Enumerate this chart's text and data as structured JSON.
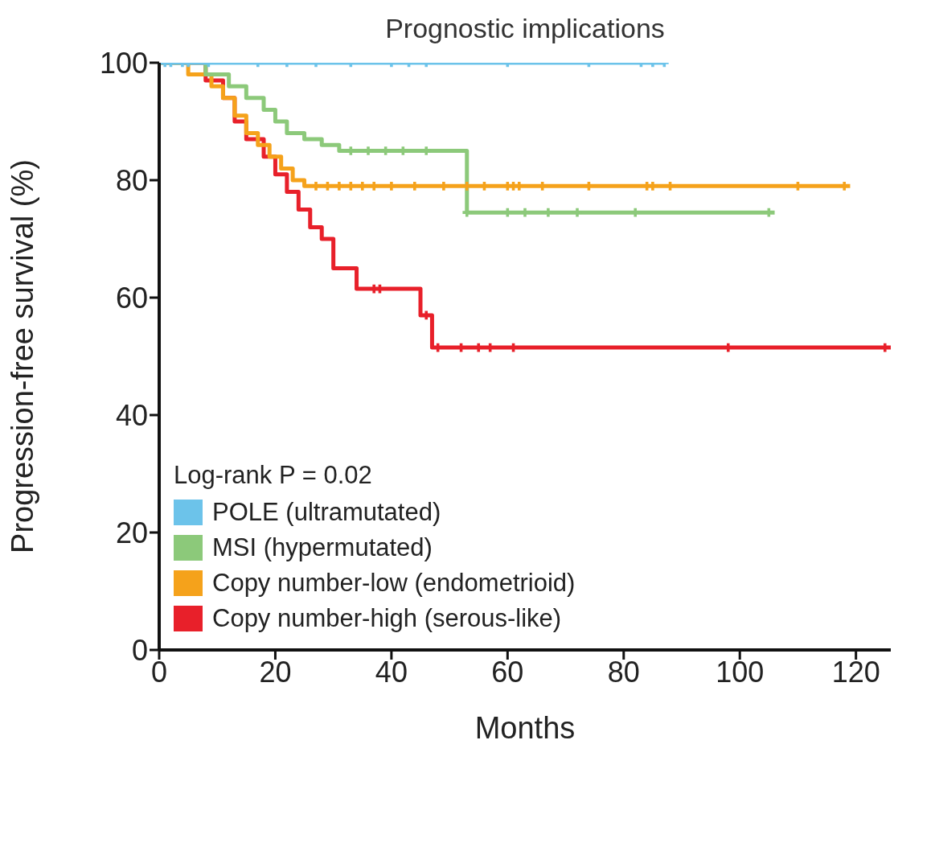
{
  "chart_data": {
    "type": "step",
    "title": "Prognostic implications",
    "xlabel": "Months",
    "ylabel": "Progression-free survival (%)",
    "xlim": [
      0,
      126
    ],
    "xticks": [
      0,
      20,
      40,
      60,
      80,
      100,
      120
    ],
    "ylim": [
      0,
      100
    ],
    "yticks": [
      0,
      20,
      40,
      60,
      80,
      100
    ],
    "grid": false,
    "legend": "bottom left",
    "line_style": "solid",
    "annotations": [
      "Log-rank P = 0.02"
    ],
    "series": [
      {
        "name": "POLE (ultramutated)",
        "color": "#6cc3ea",
        "marker": "none",
        "x": [
          0,
          87
        ],
        "values": [
          100,
          100
        ]
      },
      {
        "type": "scatter",
        "color": "#6cc3ea",
        "marker": "cross",
        "x": [
          1,
          2,
          4,
          5,
          8.5,
          17,
          22,
          27,
          33,
          40,
          43,
          46,
          60,
          74,
          83,
          85,
          87
        ],
        "values": [
          100,
          100,
          100,
          100,
          100,
          100,
          100,
          100,
          100,
          100,
          100,
          100,
          100,
          100,
          100,
          100,
          100
        ]
      },
      {
        "name": "MSI (hypermutated)",
        "color": "#8cc97a",
        "marker": "none",
        "x": [
          0,
          8,
          12,
          15,
          18,
          20,
          22,
          25,
          28,
          31,
          53,
          106
        ],
        "values": [
          100,
          98,
          96,
          94,
          92,
          90,
          88,
          87,
          86,
          85,
          74.5,
          74.5
        ]
      },
      {
        "type": "scatter",
        "color": "#8cc97a",
        "marker": "cross",
        "x": [
          33,
          36,
          39,
          42,
          46,
          53,
          60,
          63,
          67,
          72,
          82,
          105
        ],
        "values": [
          85,
          85,
          85,
          85,
          85,
          74.5,
          74.5,
          74.5,
          74.5,
          74.5,
          74.5,
          74.5
        ]
      },
      {
        "name": "Copy number-low (endometrioid)",
        "color": "#f5a21b",
        "marker": "none",
        "x": [
          0,
          5,
          9,
          11,
          13,
          15,
          17,
          19,
          21,
          23,
          25,
          119
        ],
        "values": [
          100,
          98,
          96,
          94,
          91,
          88,
          86,
          84,
          82,
          80,
          79,
          79
        ]
      },
      {
        "type": "scatter",
        "color": "#f5a21b",
        "marker": "cross",
        "x": [
          27,
          29,
          31,
          33,
          35,
          37,
          40,
          44,
          49,
          53,
          56,
          60,
          61,
          62,
          66,
          74,
          84,
          85,
          88,
          110,
          118
        ],
        "values": [
          79,
          79,
          79,
          79,
          79,
          79,
          79,
          79,
          79,
          79,
          79,
          79,
          79,
          79,
          79,
          79,
          79,
          79,
          79,
          79,
          79
        ]
      },
      {
        "name": "Copy number-high (serous-like)",
        "color": "#e8202a",
        "marker": "none",
        "x": [
          0,
          8,
          11,
          13,
          15,
          18,
          20,
          22,
          24,
          26,
          28,
          30,
          34,
          45,
          47,
          126
        ],
        "values": [
          100,
          97,
          94,
          90,
          87,
          84,
          81,
          78,
          75,
          72,
          70,
          65,
          61.5,
          57,
          51.5,
          51.5
        ]
      },
      {
        "type": "scatter",
        "color": "#e8202a",
        "marker": "cross",
        "x": [
          37,
          38,
          46,
          48,
          52,
          55,
          57,
          61,
          98,
          125
        ],
        "values": [
          61.5,
          61.5,
          57,
          51.5,
          51.5,
          51.5,
          51.5,
          51.5,
          51.5,
          51.5
        ]
      }
    ]
  }
}
